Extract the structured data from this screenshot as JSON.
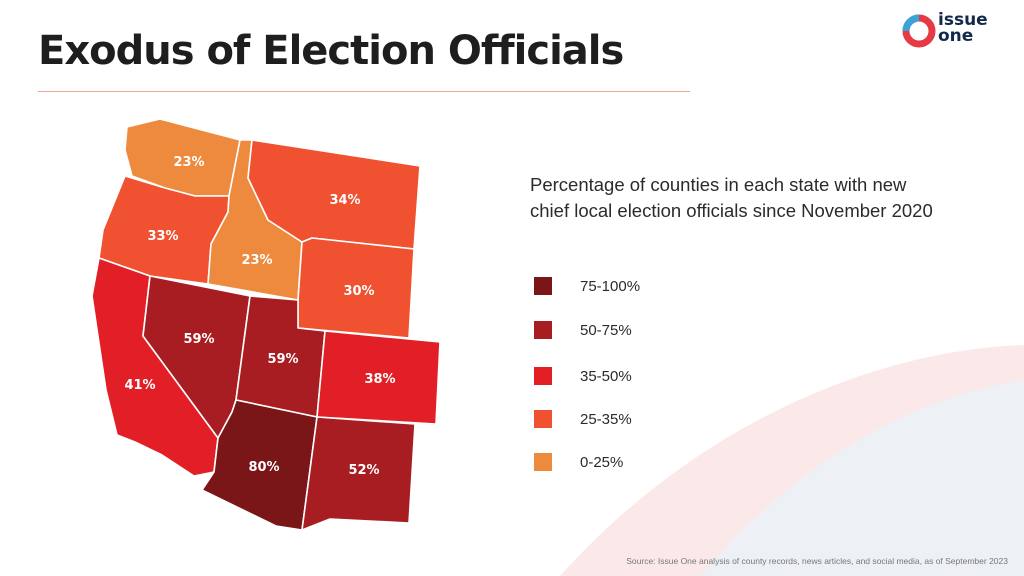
{
  "title": "Exodus of Election Officials",
  "logo": {
    "line1": "issue",
    "line2": "one",
    "colors": {
      "navy": "#13294b",
      "red": "#e63946",
      "blue": "#3aa3d9"
    }
  },
  "legend": {
    "heading": "Percentage of counties in each state with new chief local election officials since November 2020",
    "items": [
      {
        "label": "75-100%",
        "color": "#7a1518"
      },
      {
        "label": "50-75%",
        "color": "#a81d22"
      },
      {
        "label": "35-50%",
        "color": "#e21f26"
      },
      {
        "label": "25-35%",
        "color": "#ef5131"
      },
      {
        "label": "0-25%",
        "color": "#ee8a3e"
      }
    ]
  },
  "states": [
    {
      "id": "washington",
      "value": "23%",
      "color": "#ee8a3e"
    },
    {
      "id": "oregon",
      "value": "33%",
      "color": "#ef5131"
    },
    {
      "id": "idaho",
      "value": "23%",
      "color": "#ee8a3e"
    },
    {
      "id": "montana",
      "value": "34%",
      "color": "#ef5131"
    },
    {
      "id": "wyoming",
      "value": "30%",
      "color": "#ef5131"
    },
    {
      "id": "california",
      "value": "41%",
      "color": "#e21f26"
    },
    {
      "id": "nevada",
      "value": "59%",
      "color": "#a81d22"
    },
    {
      "id": "utah",
      "value": "59%",
      "color": "#a81d22"
    },
    {
      "id": "colorado",
      "value": "38%",
      "color": "#e21f26"
    },
    {
      "id": "arizona",
      "value": "80%",
      "color": "#7a1518"
    },
    {
      "id": "new-mexico",
      "value": "52%",
      "color": "#a81d22"
    }
  ],
  "source": "Source: Issue One analysis of county records, news articles, and social media, as of September 2023"
}
